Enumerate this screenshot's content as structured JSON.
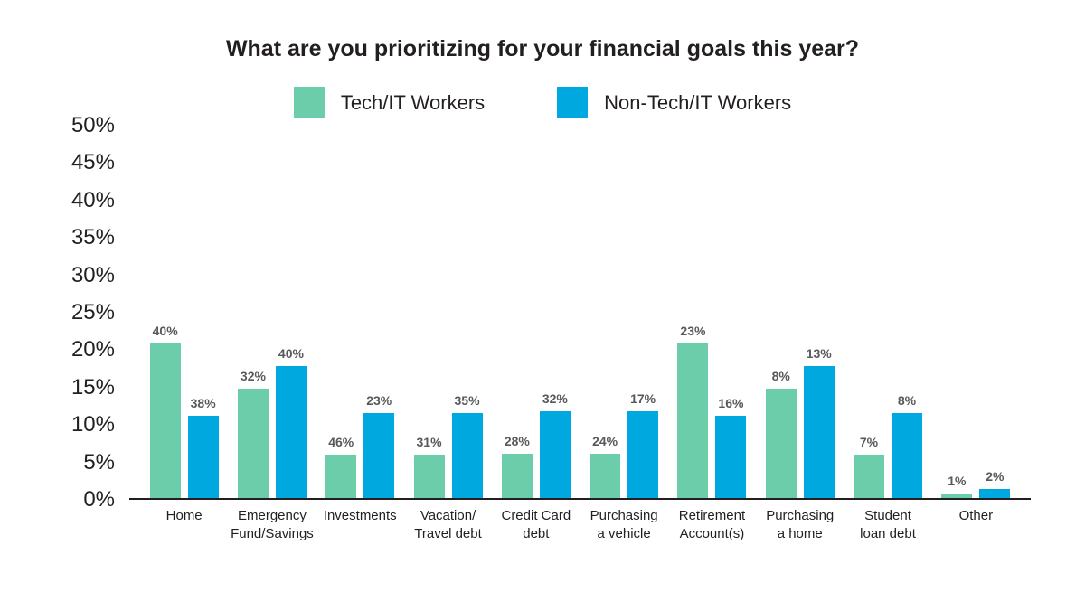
{
  "chart_data": {
    "type": "bar",
    "title": "What are you prioritizing for your financial goals this year?",
    "legend_position": "top",
    "grid": false,
    "categories": [
      "Home",
      "Emergency\nFund/Savings",
      "Investments",
      "Vacation/\nTravel debt",
      "Credit Card\ndebt",
      "Purchasing\na vehicle",
      "Retirement\nAccount(s)",
      "Purchasing\na home",
      "Student\nloan debt",
      "Other"
    ],
    "series": [
      {
        "name": "Tech/IT Workers",
        "color": "#6CCDAA",
        "values": [
          40,
          32,
          46,
          31,
          28,
          24,
          23,
          8,
          7,
          1
        ],
        "drawn_height_axis_pct": [
          20.6,
          14.6,
          5.8,
          5.8,
          5.9,
          5.9,
          20.6,
          14.6,
          5.8,
          0.6
        ]
      },
      {
        "name": "Non-Tech/IT Workers",
        "color": "#00A8E0",
        "values": [
          38,
          40,
          23,
          35,
          32,
          17,
          16,
          13,
          8,
          2
        ],
        "drawn_height_axis_pct": [
          11.0,
          17.6,
          11.4,
          11.4,
          11.6,
          11.6,
          11.0,
          17.6,
          11.4,
          1.2
        ]
      }
    ],
    "value_label_suffix": "%",
    "y_axis": {
      "min": 0,
      "max": 50,
      "ticks": [
        {
          "label": "50%",
          "value": 50
        },
        {
          "label": "45%",
          "value": 45
        },
        {
          "label": "40%",
          "value": 40
        },
        {
          "label": "35%",
          "value": 35
        },
        {
          "label": "30%",
          "value": 30
        },
        {
          "label": "25%",
          "value": 25
        },
        {
          "label": "20%",
          "value": 20
        },
        {
          "label": "15%",
          "value": 15
        },
        {
          "label": "10%",
          "value": 10
        },
        {
          "label": "5%",
          "value": 5
        },
        {
          "label": "0%",
          "value": 0
        }
      ]
    },
    "colors": {
      "title_text": "#231F20",
      "axis_text": "#231F20",
      "axis_line": "#231F20",
      "value_label_text": "#58595B",
      "background": "#FFFFFF"
    }
  }
}
